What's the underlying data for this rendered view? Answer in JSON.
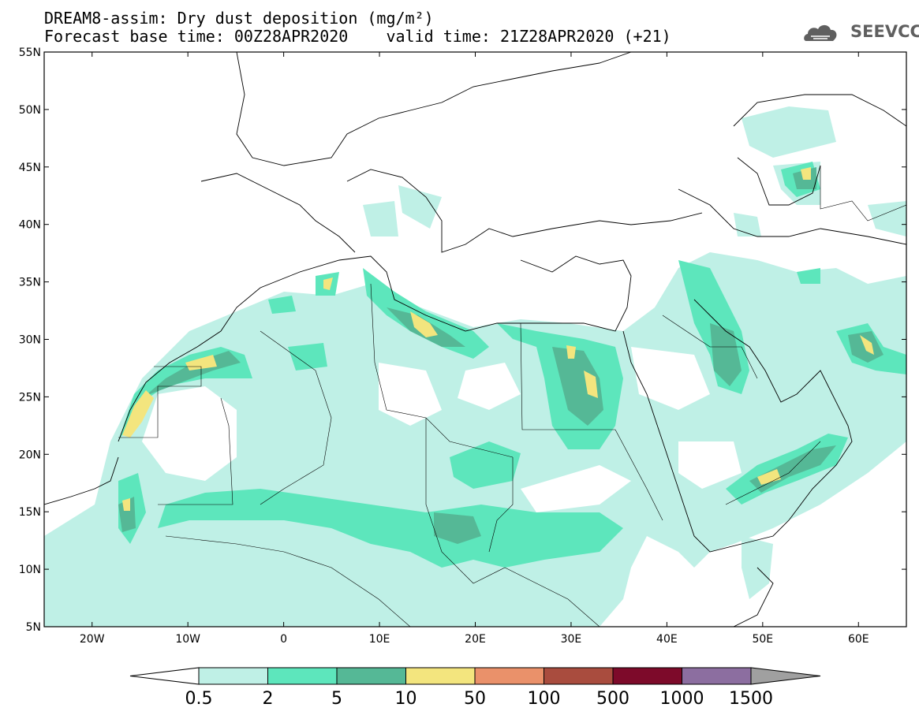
{
  "header": {
    "line1": "DREAM8-assim: Dry dust deposition (mg/m²)",
    "line2": "Forecast base time: 00Z28APR2020    valid time: 21Z28APR2020 (+21)"
  },
  "logo": {
    "name": "cloud-logo-icon",
    "text": "SEEVCCC",
    "color": "#5f5f5f"
  },
  "map": {
    "projection": "lat-lon",
    "lon_range": [
      -25,
      65
    ],
    "lat_range": [
      5,
      55
    ],
    "x_ticks": [
      {
        "lon": -20,
        "label": "20W"
      },
      {
        "lon": -10,
        "label": "10W"
      },
      {
        "lon": 0,
        "label": "0"
      },
      {
        "lon": 10,
        "label": "10E"
      },
      {
        "lon": 20,
        "label": "20E"
      },
      {
        "lon": 30,
        "label": "30E"
      },
      {
        "lon": 40,
        "label": "40E"
      },
      {
        "lon": 50,
        "label": "50E"
      },
      {
        "lon": 60,
        "label": "60E"
      }
    ],
    "y_ticks": [
      {
        "lat": 55,
        "label": "55N"
      },
      {
        "lat": 50,
        "label": "50N"
      },
      {
        "lat": 45,
        "label": "45N"
      },
      {
        "lat": 40,
        "label": "40N"
      },
      {
        "lat": 35,
        "label": "35N"
      },
      {
        "lat": 30,
        "label": "30N"
      },
      {
        "lat": 25,
        "label": "25N"
      },
      {
        "lat": 20,
        "label": "20N"
      },
      {
        "lat": 15,
        "label": "15N"
      },
      {
        "lat": 10,
        "label": "10N"
      },
      {
        "lat": 5,
        "label": "5N"
      }
    ]
  },
  "colorbar": {
    "labels": [
      "0.5",
      "2",
      "5",
      "10",
      "50",
      "100",
      "500",
      "1000",
      "1500"
    ],
    "colors": [
      "#bff0e6",
      "#5de6bc",
      "#55b896",
      "#f3e57e",
      "#ea916a",
      "#a94c3e",
      "#7d0a2a",
      "#8c6ea0"
    ],
    "under_color": "#ffffff",
    "over_color": "#a0a0a0"
  }
}
